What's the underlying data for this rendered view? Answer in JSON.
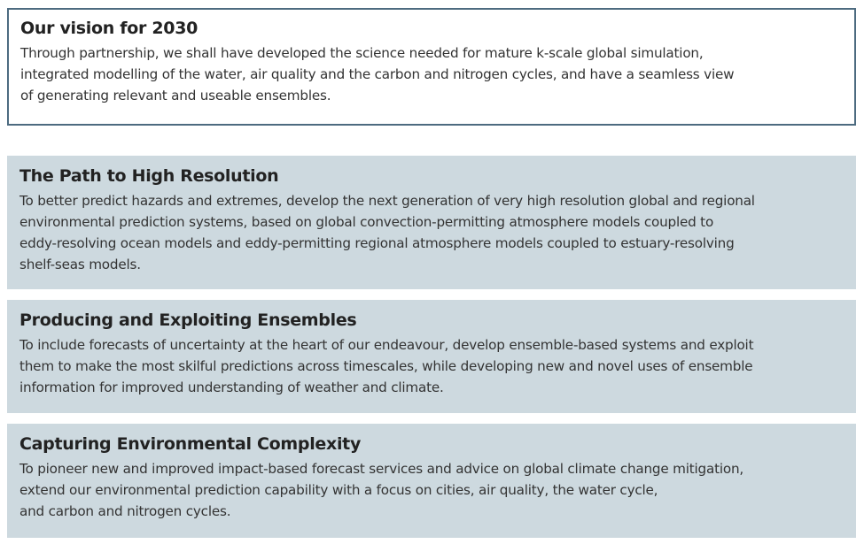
{
  "vision": {
    "title": "Our vision for 2030",
    "body": "Through partnership, we shall have developed the science needed for mature k-scale global simulation,\nintegrated modelling of the water, air quality and the carbon and nitrogen cycles, and have a seamless view\nof generating relevant and useable ensembles."
  },
  "sections": [
    {
      "title": "The Path to High Resolution",
      "body": "To better predict hazards and extremes, develop the next generation of very high resolution global and regional\nenvironmental prediction systems, based on global convection-permitting atmosphere models coupled to\neddy-resolving ocean models and eddy-permitting regional atmosphere models coupled to estuary-resolving\nshelf-seas models."
    },
    {
      "title": "Producing and Exploiting Ensembles",
      "body": "To include forecasts of uncertainty at the heart of our endeavour, develop ensemble-based systems and exploit\nthem to make the most skilful predictions across timescales, while developing new and novel uses of ensemble\ninformation for improved understanding of weather and climate."
    },
    {
      "title": "Capturing Environmental Complexity",
      "body": "To pioneer new and improved impact-based forecast services and advice on global climate change mitigation,\nextend our environmental prediction capability with a focus on cities, air quality, the water cycle,\nand carbon and nitrogen cycles."
    }
  ]
}
